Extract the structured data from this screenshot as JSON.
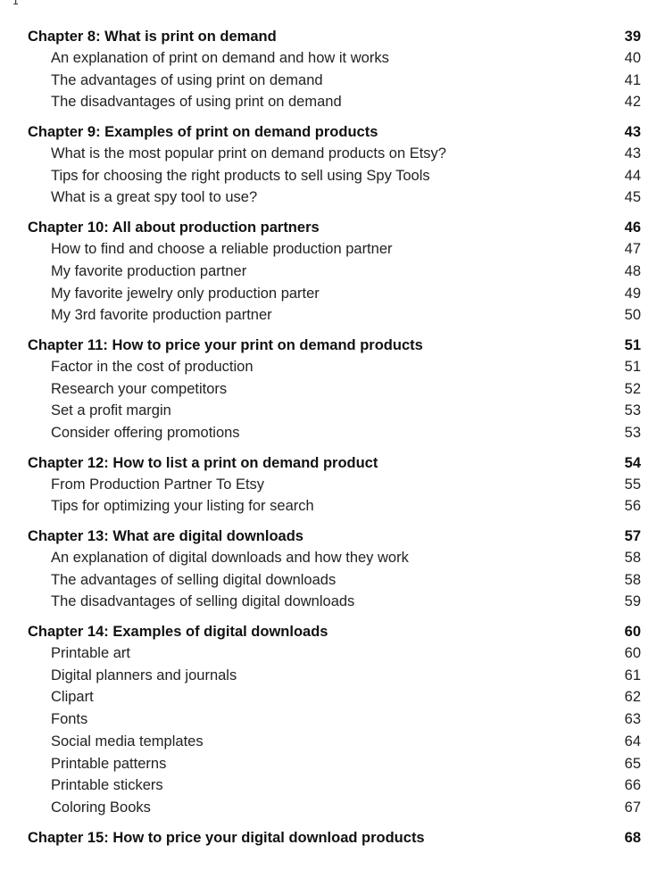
{
  "cursor_glyph": "I",
  "chapters": [
    {
      "title": "Chapter 8: What is print on demand",
      "page": "39",
      "items": [
        {
          "title": "An explanation of print on demand and how it works",
          "page": "40"
        },
        {
          "title": "The advantages of using print on demand",
          "page": "41"
        },
        {
          "title": "The disadvantages of using print on demand",
          "page": "42"
        }
      ]
    },
    {
      "title": "Chapter 9: Examples of print on demand products",
      "page": "43",
      "items": [
        {
          "title": "What is the most popular print on demand products on Etsy?",
          "page": "43"
        },
        {
          "title": "Tips for choosing the right products to sell using Spy Tools",
          "page": "44"
        },
        {
          "title": "What is a great spy tool to use?",
          "page": "45"
        }
      ]
    },
    {
      "title": "Chapter 10: All about production partners",
      "page": "46",
      "items": [
        {
          "title": "How to find and choose a reliable production partner",
          "page": "47"
        },
        {
          "title": "My favorite production partner",
          "page": "48"
        },
        {
          "title": "My favorite jewelry only production parter",
          "page": "49"
        },
        {
          "title": "My 3rd favorite production partner",
          "page": "50"
        }
      ]
    },
    {
      "title": "Chapter 11: How to price your print on demand products",
      "page": "51",
      "items": [
        {
          "title": "Factor in the cost of production",
          "page": "51"
        },
        {
          "title": "Research your competitors",
          "page": "52"
        },
        {
          "title": "Set a profit margin",
          "page": "53"
        },
        {
          "title": "Consider offering promotions",
          "page": "53"
        }
      ]
    },
    {
      "title": "Chapter 12: How to list a print on demand product",
      "page": "54",
      "items": [
        {
          "title": "From Production Partner To Etsy",
          "page": "55"
        },
        {
          "title": "Tips for optimizing your listing for search",
          "page": "56"
        }
      ]
    },
    {
      "title": "Chapter 13: What are digital downloads",
      "page": "57",
      "items": [
        {
          "title": "An explanation of digital downloads and how they work",
          "page": "58"
        },
        {
          "title": "The advantages of selling digital downloads",
          "page": "58"
        },
        {
          "title": "The disadvantages of selling digital downloads",
          "page": "59"
        }
      ]
    },
    {
      "title": "Chapter 14: Examples of digital downloads",
      "page": "60",
      "items": [
        {
          "title": "Printable art",
          "page": "60"
        },
        {
          "title": "Digital planners and journals",
          "page": "61"
        },
        {
          "title": "Clipart",
          "page": "62"
        },
        {
          "title": "Fonts",
          "page": "63"
        },
        {
          "title": "Social media templates",
          "page": "64"
        },
        {
          "title": "Printable patterns",
          "page": "65"
        },
        {
          "title": "Printable stickers",
          "page": "66"
        },
        {
          "title": "Coloring Books",
          "page": "67"
        }
      ]
    },
    {
      "title": "Chapter 15: How to price your digital download products",
      "page": "68",
      "items": []
    }
  ]
}
